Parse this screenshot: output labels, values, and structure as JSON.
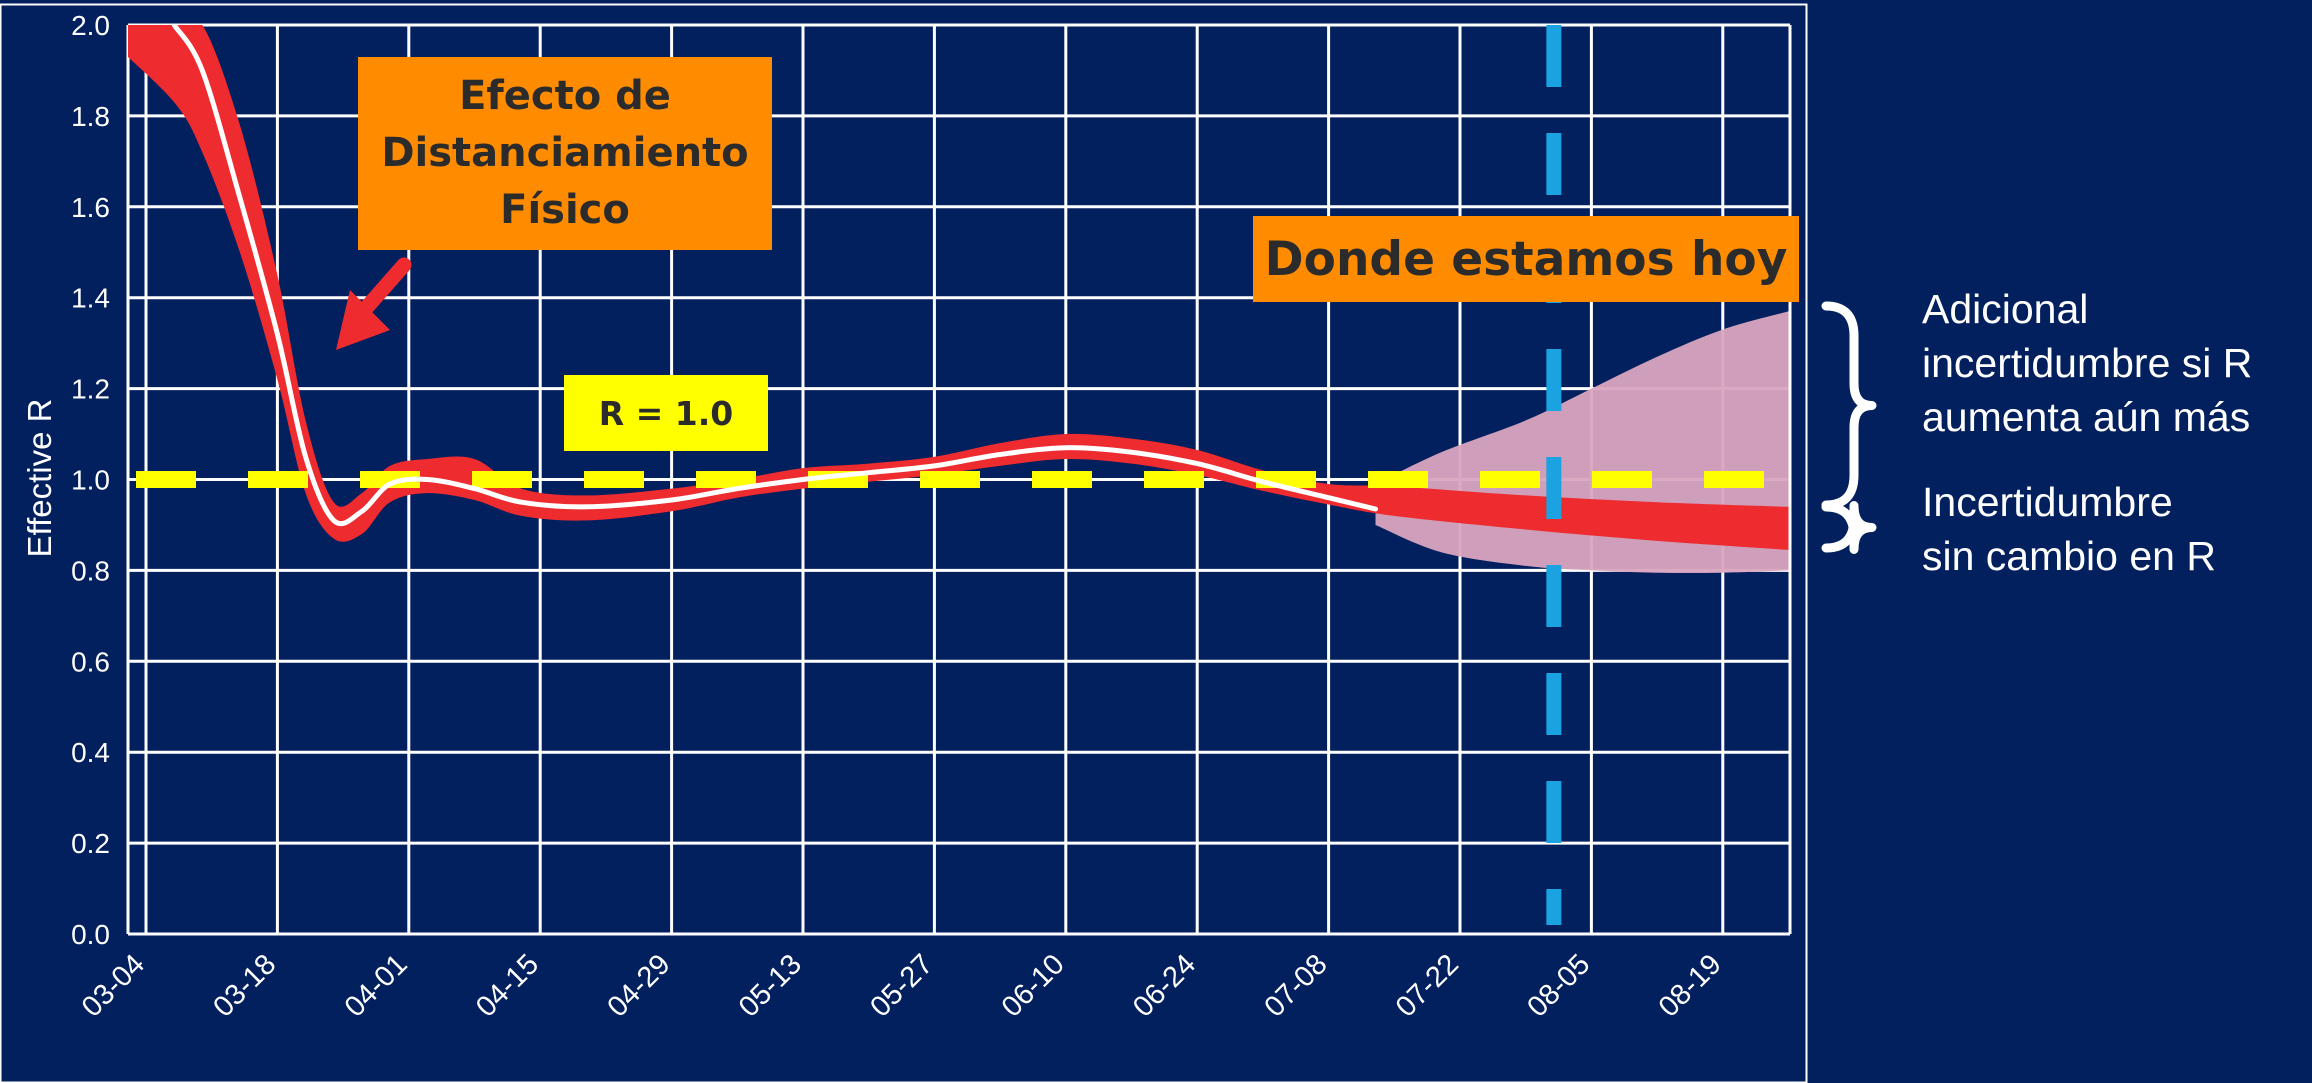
{
  "chart_data": {
    "type": "line",
    "ylabel": "Effective R",
    "xlabel": "",
    "ylim": [
      0.0,
      2.0
    ],
    "y_ticks": [
      "0.0",
      "0.2",
      "0.4",
      "0.6",
      "0.8",
      "1.0",
      "1.2",
      "1.4",
      "1.6",
      "1.8",
      "2.0"
    ],
    "x_ticks": [
      "03-04",
      "03-18",
      "04-01",
      "04-15",
      "04-29",
      "05-13",
      "05-27",
      "06-10",
      "06-24",
      "07-08",
      "07-22",
      "08-05",
      "08-19"
    ],
    "grid": true,
    "series": [
      {
        "kind": "estimate-line",
        "color": "#ffffff",
        "points": [
          [
            "03-07",
            2.0
          ],
          [
            "03-10",
            1.9
          ],
          [
            "03-14",
            1.62
          ],
          [
            "03-18",
            1.32
          ],
          [
            "03-21",
            1.05
          ],
          [
            "03-24",
            0.91
          ],
          [
            "03-27",
            0.93
          ],
          [
            "03-30",
            0.99
          ],
          [
            "04-03",
            1.0
          ],
          [
            "04-08",
            0.98
          ],
          [
            "04-13",
            0.95
          ],
          [
            "04-20",
            0.94
          ],
          [
            "04-29",
            0.955
          ],
          [
            "05-06",
            0.98
          ],
          [
            "05-13",
            1.0
          ],
          [
            "05-20",
            1.015
          ],
          [
            "05-27",
            1.03
          ],
          [
            "06-03",
            1.055
          ],
          [
            "06-10",
            1.07
          ],
          [
            "06-17",
            1.06
          ],
          [
            "06-24",
            1.035
          ],
          [
            "07-01",
            0.995
          ],
          [
            "07-08",
            0.96
          ],
          [
            "07-13",
            0.935
          ]
        ]
      },
      {
        "kind": "confidence-band",
        "color": "#ee2b2f",
        "points": [
          [
            "03-01",
            1.95,
            2.0
          ],
          [
            "03-07",
            1.83,
            2.0
          ],
          [
            "03-10",
            1.72,
            2.0
          ],
          [
            "03-14",
            1.5,
            1.78
          ],
          [
            "03-18",
            1.22,
            1.45
          ],
          [
            "03-21",
            0.97,
            1.13
          ],
          [
            "03-24",
            0.87,
            0.95
          ],
          [
            "03-27",
            0.88,
            0.97
          ],
          [
            "03-30",
            0.95,
            1.03
          ],
          [
            "04-03",
            0.97,
            1.045
          ],
          [
            "04-08",
            0.955,
            1.045
          ],
          [
            "04-13",
            0.92,
            0.98
          ],
          [
            "04-20",
            0.91,
            0.965
          ],
          [
            "04-29",
            0.93,
            0.98
          ],
          [
            "05-06",
            0.96,
            1.0
          ],
          [
            "05-13",
            0.98,
            1.025
          ],
          [
            "05-20",
            0.995,
            1.035
          ],
          [
            "05-27",
            1.01,
            1.05
          ],
          [
            "06-03",
            1.03,
            1.08
          ],
          [
            "06-10",
            1.045,
            1.1
          ],
          [
            "06-17",
            1.035,
            1.09
          ],
          [
            "06-24",
            1.01,
            1.065
          ],
          [
            "07-01",
            0.975,
            1.02
          ],
          [
            "07-08",
            0.945,
            0.99
          ],
          [
            "07-15",
            0.92,
            0.985
          ],
          [
            "07-29",
            0.89,
            0.965
          ],
          [
            "08-12",
            0.865,
            0.95
          ],
          [
            "08-26",
            0.845,
            0.94
          ]
        ]
      },
      {
        "kind": "uncertainty-band",
        "color": "#d9a5bf",
        "points": [
          [
            "07-13",
            0.9,
            0.99
          ],
          [
            "07-20",
            0.84,
            1.06
          ],
          [
            "07-29",
            0.81,
            1.13
          ],
          [
            "08-05",
            0.8,
            1.2
          ],
          [
            "08-12",
            0.795,
            1.27
          ],
          [
            "08-19",
            0.795,
            1.33
          ],
          [
            "08-26",
            0.8,
            1.37
          ]
        ]
      }
    ],
    "reference_line": {
      "y": 1.0,
      "label": "R = 1.0",
      "color": "#ffff00"
    },
    "today_line": {
      "date": "08-01",
      "color": "#1aa3e0"
    },
    "annotations": {
      "distancing": "Efecto de Distanciamiento Físico",
      "today": "Donde estamos hoy",
      "r_label": "R = 1.0",
      "additional": "Adicional\nincertidumbre si R\naumenta aún más",
      "nochange": "Incertidumbre\nsin cambio en R"
    },
    "colors": {
      "background": "#021f5e",
      "grid": "#ffffff",
      "callout": "#ff8c00",
      "arrow": "#ee2b2f"
    }
  }
}
